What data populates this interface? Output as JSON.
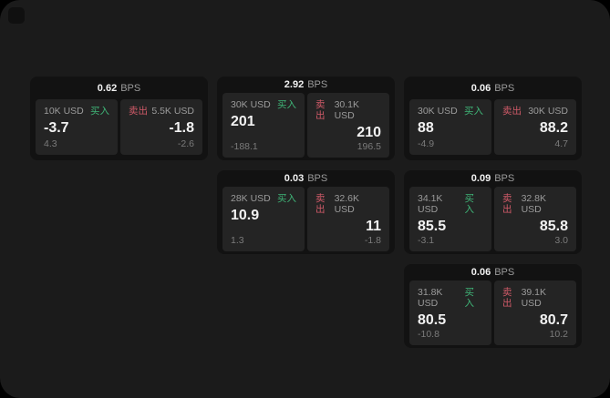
{
  "colors": {
    "panel_bg": "#1b1b1b",
    "card_bg": "#121212",
    "tile_bg": "#242424",
    "buy": "#3fb477",
    "sell": "#d05a68",
    "text_primary": "#f2f2f2",
    "text_muted": "#9b9b9b",
    "text_dim": "#7b7b7b"
  },
  "labels": {
    "bps_unit": "BPS",
    "buy": "买入",
    "sell": "卖出"
  },
  "cards": [
    {
      "col": 1,
      "row": 1,
      "bps": "0.62",
      "buy": {
        "notional": "10K USD",
        "value": "-3.7",
        "sub": "4.3"
      },
      "sell": {
        "notional": "5.5K USD",
        "value": "-1.8",
        "sub": "-2.6"
      }
    },
    {
      "col": 2,
      "row": 1,
      "bps": "2.92",
      "buy": {
        "notional": "30K USD",
        "value": "201",
        "sub": "-188.1"
      },
      "sell": {
        "notional": "30.1K USD",
        "value": "210",
        "sub": "196.5"
      }
    },
    {
      "col": 3,
      "row": 1,
      "bps": "0.06",
      "buy": {
        "notional": "30K USD",
        "value": "88",
        "sub": "-4.9"
      },
      "sell": {
        "notional": "30K USD",
        "value": "88.2",
        "sub": "4.7"
      }
    },
    {
      "col": 2,
      "row": 2,
      "bps": "0.03",
      "buy": {
        "notional": "28K USD",
        "value": "10.9",
        "sub": "1.3"
      },
      "sell": {
        "notional": "32.6K USD",
        "value": "11",
        "sub": "-1.8"
      }
    },
    {
      "col": 3,
      "row": 2,
      "bps": "0.09",
      "buy": {
        "notional": "34.1K USD",
        "value": "85.5",
        "sub": "-3.1"
      },
      "sell": {
        "notional": "32.8K USD",
        "value": "85.8",
        "sub": "3.0"
      }
    },
    {
      "col": 3,
      "row": 3,
      "bps": "0.06",
      "buy": {
        "notional": "31.8K USD",
        "value": "80.5",
        "sub": "-10.8"
      },
      "sell": {
        "notional": "39.1K USD",
        "value": "80.7",
        "sub": "10.2"
      }
    }
  ]
}
